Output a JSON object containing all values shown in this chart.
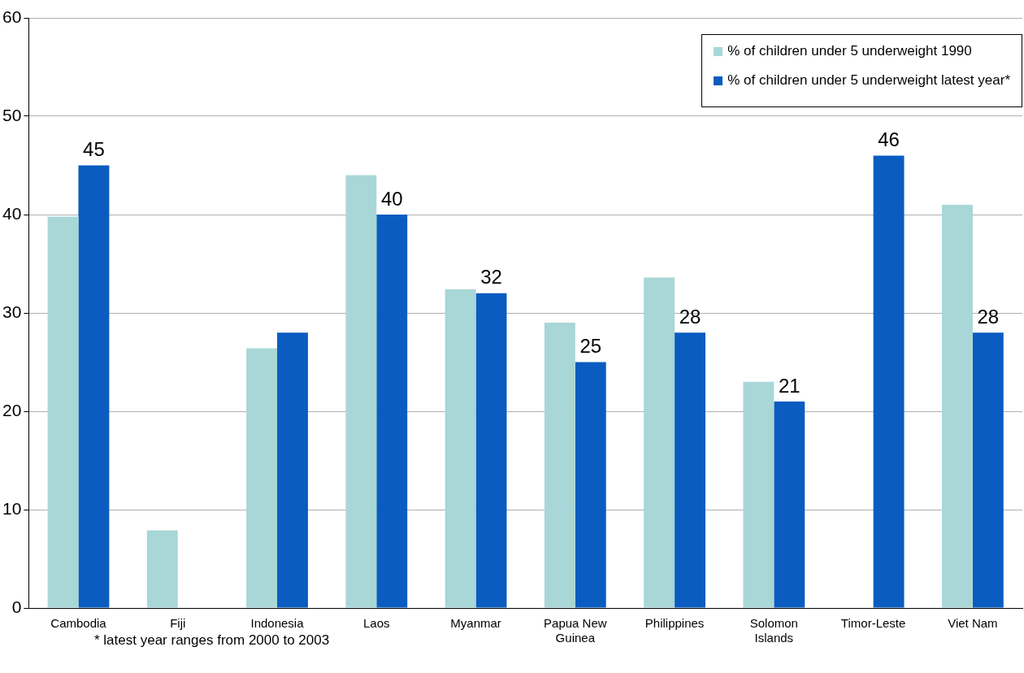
{
  "chart_data": {
    "type": "bar",
    "categories": [
      "Cambodia",
      "Fiji",
      "Indonesia",
      "Laos",
      "Myanmar",
      "Papua New Guinea",
      "Philippines",
      "Solomon Islands",
      "Timor-Leste",
      "Viet Nam"
    ],
    "series": [
      {
        "name": "% of children under 5 underweight 1990",
        "color": "#a9d6d6",
        "values": [
          39.8,
          7.9,
          26.4,
          44,
          32.4,
          29,
          33.6,
          23,
          null,
          41
        ]
      },
      {
        "name": "% of children under 5 underweight latest year*",
        "color": "#0a5cc0",
        "values": [
          45,
          null,
          28,
          40,
          32,
          25,
          28,
          21,
          46,
          28
        ],
        "value_labels": [
          "45",
          null,
          null,
          "40",
          "32",
          "25",
          "28",
          "21",
          "46",
          "28"
        ]
      }
    ],
    "ylim": [
      0,
      60
    ],
    "yticks": [
      0,
      10,
      20,
      30,
      40,
      50,
      60
    ],
    "grid": "y",
    "legend": "top right",
    "annotations": [
      "* latest year ranges from 2000 to 2003"
    ]
  }
}
